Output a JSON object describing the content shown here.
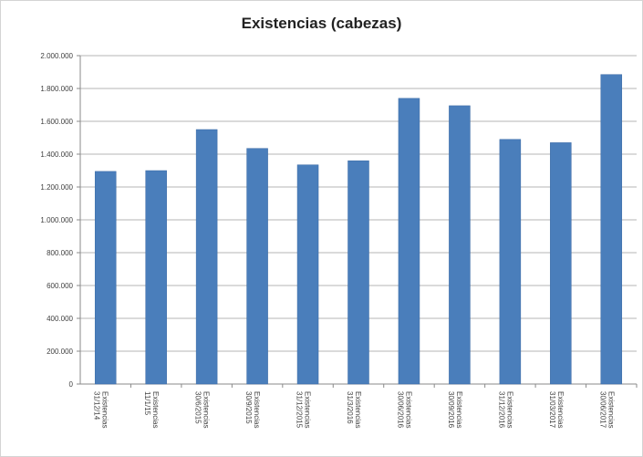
{
  "chart_data": {
    "type": "bar",
    "title": "Existencias (cabezas)",
    "xlabel": "",
    "ylabel": "",
    "ylim": [
      0,
      2000000
    ],
    "ytick_step": 200000,
    "yticks": [
      "0",
      "200.000",
      "400.000",
      "600.000",
      "800.000",
      "1.000.000",
      "1.200.000",
      "1.400.000",
      "1.600.000",
      "1.800.000",
      "2.000.000"
    ],
    "categories": [
      [
        "Existencias",
        "31/12/14"
      ],
      [
        "Existencias",
        "11/1/15"
      ],
      [
        "Existencias",
        "30/6/2015"
      ],
      [
        "Existencias",
        "30/9/2015"
      ],
      [
        "Existencias",
        "31/12/2015"
      ],
      [
        "Existencias",
        "31/3/2016"
      ],
      [
        "Existencias",
        "30/06/2016"
      ],
      [
        "Existencias",
        "30/09/2016"
      ],
      [
        "Existencias",
        "31/12/2016"
      ],
      [
        "Existencias",
        "31/03/2017"
      ],
      [
        "Existencias",
        "30/06/2017"
      ]
    ],
    "values": [
      1295000,
      1300000,
      1550000,
      1435000,
      1335000,
      1360000,
      1740000,
      1695000,
      1490000,
      1470000,
      1885000
    ],
    "colors": {
      "bar": "#4a7ebb",
      "bar_stroke": "#3b6aa5",
      "grid": "#9c9c9c",
      "axis": "#8a8a8a"
    },
    "grid": true,
    "legend": "none"
  }
}
